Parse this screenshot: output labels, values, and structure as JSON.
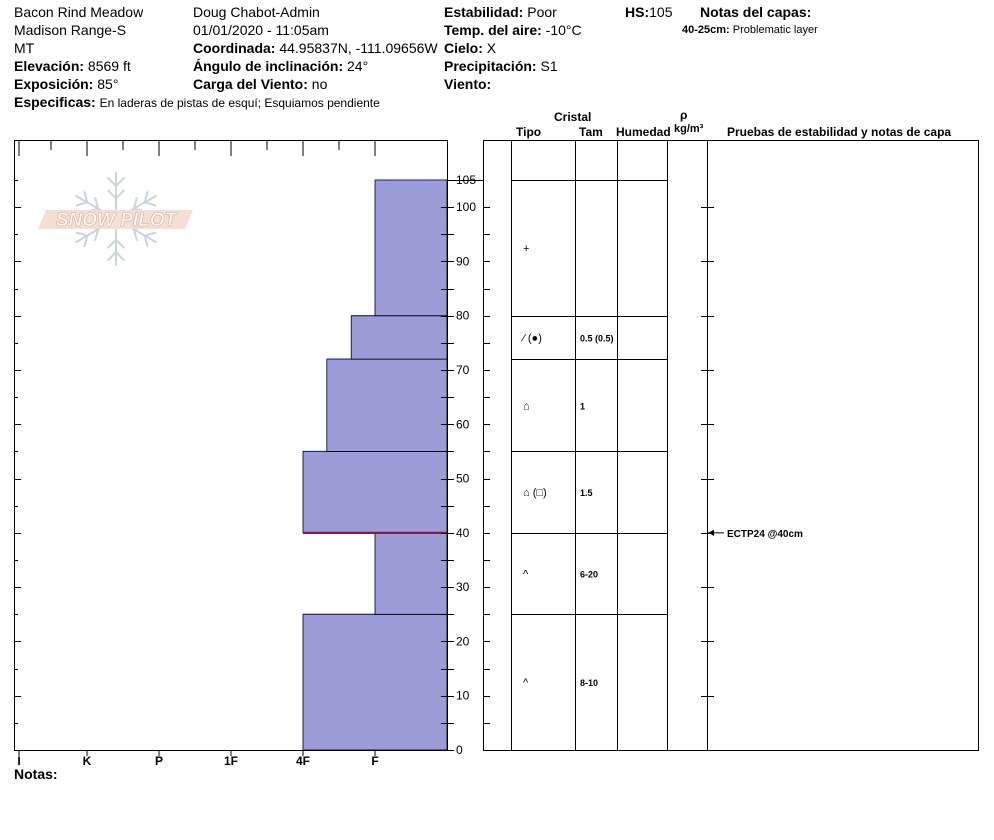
{
  "header": {
    "location": "Bacon Rind Meadow",
    "range": "Madison Range-S",
    "state": "MT",
    "elevation_label": "Elevación:",
    "elevation_value": "8569 ft",
    "aspect_label": "Exposición:",
    "aspect_value": "85°",
    "specifics_label": "Especificas:",
    "specifics_value": "En laderas de pistas de esquí; Esquiamos pendiente",
    "observer": "Doug Chabot-Admin",
    "datetime": "01/01/2020 - 11:05am",
    "coord_label": "Coordinada:",
    "coord_value": "44.95837N, -111.09656W",
    "slope_label": "Ángulo de inclinación:",
    "slope_value": "24°",
    "wind_load_label": "Carga del Viento:",
    "wind_load_value": "no",
    "stability_label": "Estabilidad:",
    "stability_value": "Poor",
    "air_temp_label": "Temp. del aire:",
    "air_temp_value": "-10°C",
    "sky_label": "Cielo:",
    "sky_value": "X",
    "precip_label": "Precipitación:",
    "precip_value": "S1",
    "wind_label": "Viento:",
    "wind_value": "",
    "hs_label": "HS:",
    "hs_value": "105",
    "layer_notes_label": "Notas del capas:",
    "layer_note_depth": "40-25cm:",
    "layer_note_text": "Problematic layer"
  },
  "logo": {
    "text": "SNOW PILOT"
  },
  "columns": {
    "crystal": "Cristal",
    "type": "Tipo",
    "size": "Tam",
    "moisture": "Humedad",
    "rho": "ρ",
    "density_unit": "kg/m³",
    "tests": "Pruebas de estabilidad y notas de capa"
  },
  "chart_data": {
    "type": "bar",
    "title": "",
    "hardness_categories": [
      "I",
      "K",
      "P",
      "1F",
      "4F",
      "F"
    ],
    "hardness_scale_note": "F=1, 4F=2, 1F=3, P=4, K=5, I=6",
    "y_ticks": [
      0,
      10,
      20,
      30,
      40,
      50,
      60,
      70,
      80,
      90,
      100,
      105
    ],
    "ylim": [
      0,
      105
    ],
    "layers": [
      {
        "bottom": 0,
        "top": 25,
        "hardness": 2
      },
      {
        "bottom": 25,
        "top": 40,
        "hardness": 1
      },
      {
        "bottom": 40,
        "top": 55,
        "hardness": 2
      },
      {
        "bottom": 55,
        "top": 72,
        "hardness": 1.67
      },
      {
        "bottom": 72,
        "top": 80,
        "hardness": 1.33
      },
      {
        "bottom": 80,
        "top": 105,
        "hardness": 1
      }
    ],
    "problem_layer_depth": 40,
    "crystal_rows": [
      {
        "bottom": 80,
        "top": 105,
        "type_symbol": "+",
        "size": ""
      },
      {
        "bottom": 72,
        "top": 80,
        "type_symbol": "⁄ (●)",
        "size": "0.5 (0.5)"
      },
      {
        "bottom": 55,
        "top": 72,
        "type_symbol": "⌂",
        "size": "1"
      },
      {
        "bottom": 40,
        "top": 55,
        "type_symbol": "⌂ (□)",
        "size": "1.5"
      },
      {
        "bottom": 25,
        "top": 40,
        "type_symbol": "^",
        "size": "6-20"
      },
      {
        "bottom": 0,
        "top": 25,
        "type_symbol": "^",
        "size": "8-10"
      }
    ],
    "test_results": [
      {
        "depth": 40,
        "text": "ECTP24 @40cm"
      }
    ]
  },
  "footer": {
    "notes_label": "Notas:"
  }
}
